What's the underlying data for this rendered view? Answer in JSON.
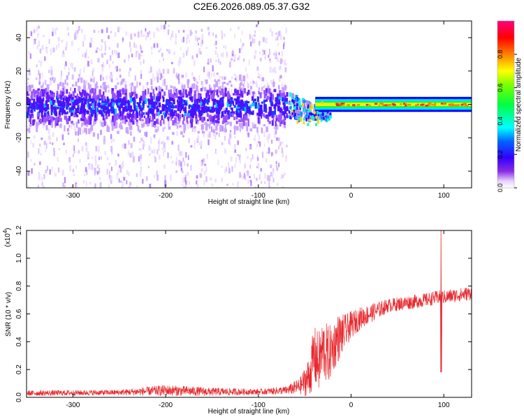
{
  "title": "C2E6.2026.089.05.37.G32",
  "chart_data": [
    {
      "type": "heatmap",
      "xlabel": "Height of straight line (km)",
      "ylabel": "Frequency (Hz)",
      "xlim": [
        -350,
        130
      ],
      "ylim": [
        -50,
        50
      ],
      "x_ticks": [
        -300,
        -200,
        -100,
        0,
        100
      ],
      "y_ticks": [
        -40,
        -20,
        0,
        20,
        40
      ],
      "colorbar": {
        "label": "Normalized spectral amplitude",
        "range": [
          0.0,
          1.0
        ],
        "ticks": [
          0.0,
          0.2,
          0.4,
          0.6,
          0.8
        ],
        "tick_labels": [
          "0.0",
          "0.2",
          "0.4",
          "0.6",
          "0.8"
        ],
        "colors": [
          "#ffffff",
          "#8a2be2",
          "#3300ff",
          "#0000ff",
          "#00ffff",
          "#00ff00",
          "#ffff00",
          "#ff8000",
          "#ff0000",
          "#ff0080"
        ]
      },
      "features": {
        "noisy_band": {
          "x_range": [
            -350,
            -70
          ],
          "freq_center": 0,
          "half_width_hz": 8,
          "amplitude": 0.2
        },
        "scatter_noise": {
          "x_range": [
            -350,
            -70
          ],
          "freq_range": [
            -50,
            48
          ],
          "amplitude": 0.05
        },
        "signal_line": {
          "x_range": [
            -65,
            130
          ],
          "freq_center": 0,
          "half_width_hz": 2.5,
          "amplitude": 0.85
        }
      }
    },
    {
      "type": "line",
      "xlabel": "Height of straight line (km)",
      "ylabel": "SNR (10 * v/v)",
      "scale_label": "(x10",
      "scale_exponent": "4",
      "scale_suffix": ")",
      "xlim": [
        -350,
        130
      ],
      "ylim": [
        0,
        1.2
      ],
      "x_ticks": [
        -300,
        -200,
        -100,
        0,
        100
      ],
      "y_ticks": [
        0.0,
        0.2,
        0.4,
        0.6,
        0.8,
        1.0,
        1.2
      ],
      "y_tick_labels": [
        "0.0",
        "0.2",
        "0.4",
        "0.6",
        "0.8",
        "1.0",
        "1.2"
      ],
      "series_color": "#e8282d",
      "trend": {
        "x": [
          -350,
          -250,
          -200,
          -150,
          -100,
          -70,
          -55,
          -45,
          -40,
          -35,
          -30,
          -25,
          -20,
          -15,
          -10,
          -5,
          0,
          10,
          20,
          30,
          40,
          60,
          80,
          95,
          100,
          110,
          120,
          130
        ],
        "y": [
          0.03,
          0.035,
          0.05,
          0.04,
          0.04,
          0.05,
          0.08,
          0.15,
          0.3,
          0.25,
          0.35,
          0.3,
          0.35,
          0.42,
          0.45,
          0.48,
          0.52,
          0.57,
          0.6,
          0.63,
          0.66,
          0.68,
          0.7,
          0.72,
          0.72,
          0.73,
          0.74,
          0.75
        ],
        "noise_amplitude": [
          0.02,
          0.02,
          0.04,
          0.03,
          0.02,
          0.03,
          0.06,
          0.15,
          0.22,
          0.22,
          0.22,
          0.22,
          0.18,
          0.18,
          0.15,
          0.12,
          0.1,
          0.08,
          0.07,
          0.06,
          0.05,
          0.05,
          0.05,
          0.05,
          0.05,
          0.05,
          0.05,
          0.05
        ]
      },
      "spike": {
        "x": 97,
        "y_max": 1.2,
        "y_min": 0.18
      }
    }
  ]
}
